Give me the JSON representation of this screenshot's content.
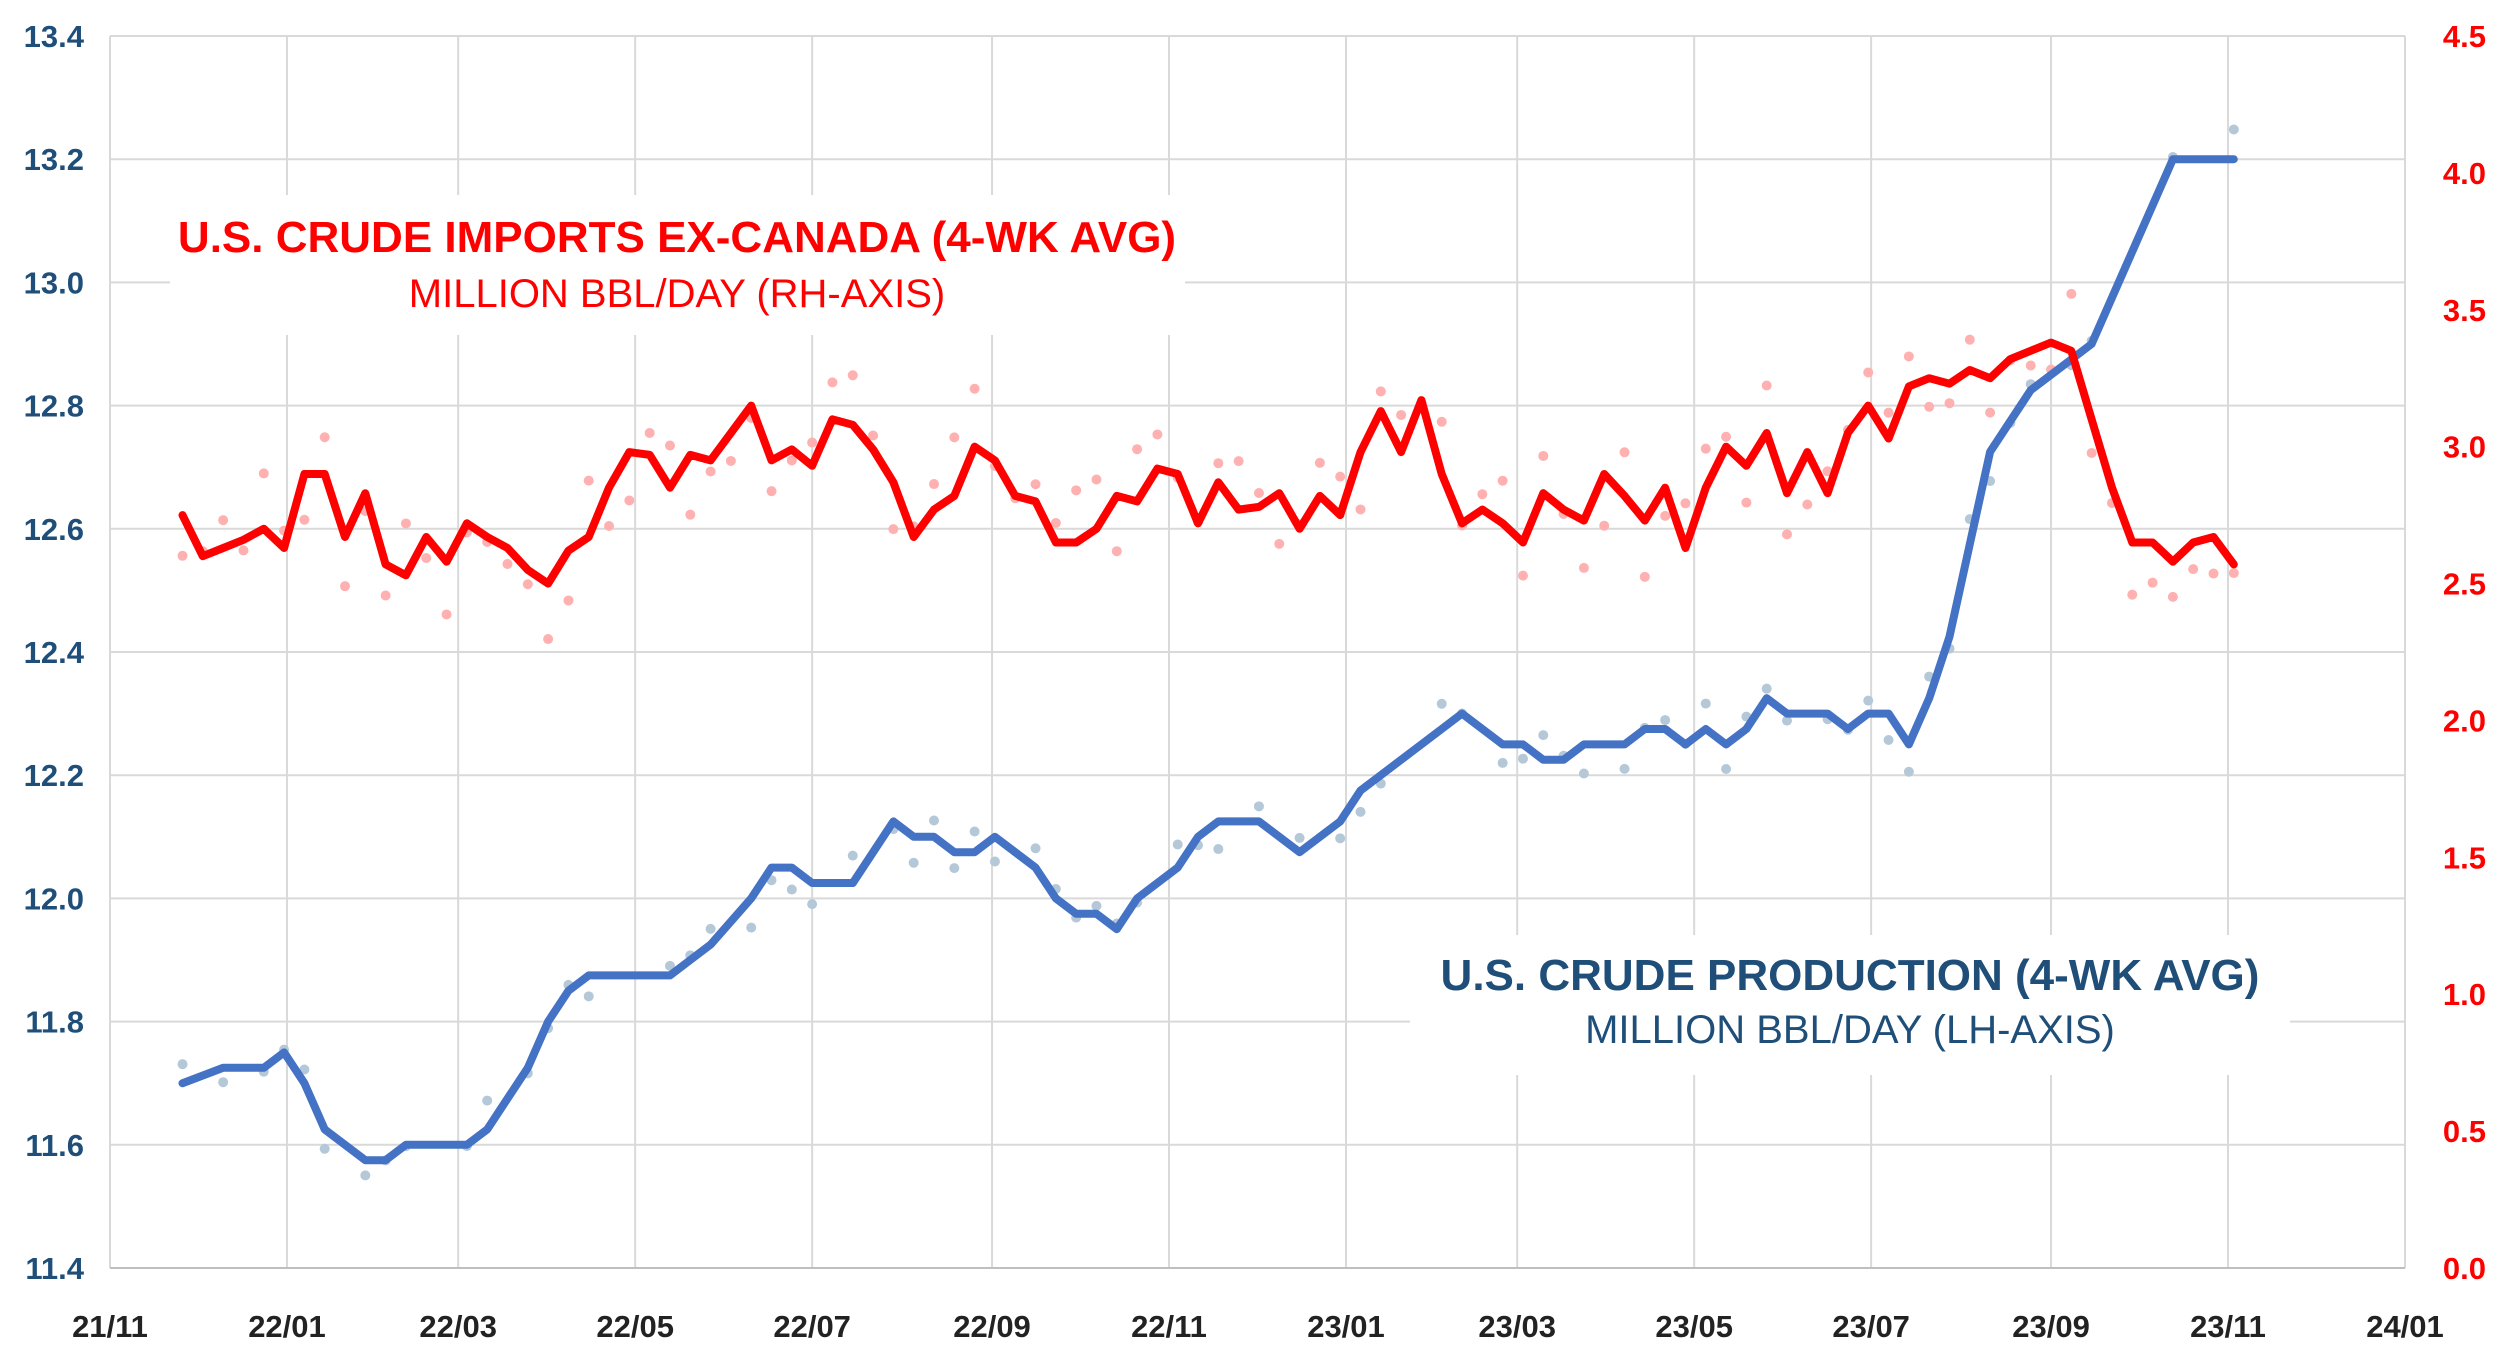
{
  "chart_data": {
    "type": "line",
    "x_ticks": [
      "21/11",
      "22/01",
      "22/03",
      "22/05",
      "22/07",
      "22/09",
      "22/11",
      "23/01",
      "23/03",
      "23/05",
      "23/07",
      "23/09",
      "23/11",
      "24/01"
    ],
    "y_left": {
      "range": [
        11.4,
        13.4
      ],
      "ticks": [
        "11.4",
        "11.6",
        "11.8",
        "12.0",
        "12.2",
        "12.4",
        "12.6",
        "12.8",
        "13.0",
        "13.2",
        "13.4"
      ],
      "color": "#1f4e79"
    },
    "y_right": {
      "range": [
        0.0,
        4.5
      ],
      "ticks": [
        "0.0",
        "0.5",
        "1.0",
        "1.5",
        "2.0",
        "2.5",
        "3.0",
        "3.5",
        "4.0",
        "4.5"
      ],
      "color": "#ff0000"
    },
    "grid": true,
    "labels": {
      "imports_title": "U.S. CRUDE IMPORTS EX-CANADA (4-WK AVG)",
      "imports_sub": "MILLION BBL/DAY (RH-AXIS)",
      "production_title": "U.S. CRUDE PRODUCTION (4-WK AVG)",
      "production_sub": "MILLION BBL/DAY (LH-AXIS)"
    },
    "series": [
      {
        "name": "U.S. Crude Production (4-wk avg)",
        "axis": "left",
        "color": "#4472c4",
        "points": [
          [
            "2021-11-26",
            11.7
          ],
          [
            "2021-12-10",
            11.725
          ],
          [
            "2021-12-24",
            11.725
          ],
          [
            "2021-12-31",
            11.75
          ],
          [
            "2022-01-07",
            11.7
          ],
          [
            "2022-01-14",
            11.625
          ],
          [
            "2022-01-28",
            11.575
          ],
          [
            "2022-02-04",
            11.575
          ],
          [
            "2022-02-11",
            11.6
          ],
          [
            "2022-03-04",
            11.6
          ],
          [
            "2022-03-11",
            11.625
          ],
          [
            "2022-03-25",
            11.725
          ],
          [
            "2022-04-01",
            11.8
          ],
          [
            "2022-04-08",
            11.85
          ],
          [
            "2022-04-15",
            11.875
          ],
          [
            "2022-05-13",
            11.875
          ],
          [
            "2022-05-20",
            11.9
          ],
          [
            "2022-05-27",
            11.925
          ],
          [
            "2022-06-10",
            12.0
          ],
          [
            "2022-06-17",
            12.05
          ],
          [
            "2022-06-24",
            12.05
          ],
          [
            "2022-07-01",
            12.025
          ],
          [
            "2022-07-15",
            12.025
          ],
          [
            "2022-07-29",
            12.125
          ],
          [
            "2022-08-05",
            12.1
          ],
          [
            "2022-08-12",
            12.1
          ],
          [
            "2022-08-19",
            12.075
          ],
          [
            "2022-08-26",
            12.075
          ],
          [
            "2022-09-02",
            12.1
          ],
          [
            "2022-09-16",
            12.05
          ],
          [
            "2022-09-23",
            12.0
          ],
          [
            "2022-09-30",
            11.975
          ],
          [
            "2022-10-07",
            11.975
          ],
          [
            "2022-10-14",
            11.95
          ],
          [
            "2022-10-21",
            12.0
          ],
          [
            "2022-11-04",
            12.05
          ],
          [
            "2022-11-11",
            12.1
          ],
          [
            "2022-11-18",
            12.125
          ],
          [
            "2022-12-02",
            12.125
          ],
          [
            "2022-12-16",
            12.075
          ],
          [
            "2022-12-30",
            12.125
          ],
          [
            "2023-01-06",
            12.175
          ],
          [
            "2023-01-13",
            12.2
          ],
          [
            "2023-02-03",
            12.275
          ],
          [
            "2023-02-10",
            12.3
          ],
          [
            "2023-02-24",
            12.25
          ],
          [
            "2023-03-03",
            12.25
          ],
          [
            "2023-03-10",
            12.225
          ],
          [
            "2023-03-17",
            12.225
          ],
          [
            "2023-03-24",
            12.25
          ],
          [
            "2023-04-07",
            12.25
          ],
          [
            "2023-04-14",
            12.275
          ],
          [
            "2023-04-21",
            12.275
          ],
          [
            "2023-04-28",
            12.25
          ],
          [
            "2023-05-05",
            12.275
          ],
          [
            "2023-05-12",
            12.25
          ],
          [
            "2023-05-19",
            12.275
          ],
          [
            "2023-05-26",
            12.325
          ],
          [
            "2023-06-02",
            12.3
          ],
          [
            "2023-06-16",
            12.3
          ],
          [
            "2023-06-23",
            12.275
          ],
          [
            "2023-06-30",
            12.3
          ],
          [
            "2023-07-07",
            12.3
          ],
          [
            "2023-07-14",
            12.25
          ],
          [
            "2023-07-21",
            12.325
          ],
          [
            "2023-07-28",
            12.425
          ],
          [
            "2023-08-04",
            12.575
          ],
          [
            "2023-08-11",
            12.725
          ],
          [
            "2023-08-18",
            12.775
          ],
          [
            "2023-08-25",
            12.825
          ],
          [
            "2023-09-08",
            12.875
          ],
          [
            "2023-09-15",
            12.9
          ],
          [
            "2023-10-13",
            13.2
          ],
          [
            "2023-11-03",
            13.2
          ]
        ]
      },
      {
        "name": "U.S. Crude Imports ex-Canada (4-wk avg)",
        "axis": "right",
        "color": "#ff0000",
        "points": [
          [
            "2021-11-26",
            2.75
          ],
          [
            "2021-12-03",
            2.6
          ],
          [
            "2021-12-10",
            2.63
          ],
          [
            "2021-12-17",
            2.66
          ],
          [
            "2021-12-24",
            2.7
          ],
          [
            "2021-12-31",
            2.63
          ],
          [
            "2022-01-07",
            2.9
          ],
          [
            "2022-01-14",
            2.9
          ],
          [
            "2022-01-21",
            2.67
          ],
          [
            "2022-01-28",
            2.83
          ],
          [
            "2022-02-04",
            2.57
          ],
          [
            "2022-02-11",
            2.53
          ],
          [
            "2022-02-18",
            2.67
          ],
          [
            "2022-02-25",
            2.58
          ],
          [
            "2022-03-04",
            2.72
          ],
          [
            "2022-03-11",
            2.67
          ],
          [
            "2022-03-18",
            2.63
          ],
          [
            "2022-03-25",
            2.55
          ],
          [
            "2022-04-01",
            2.5
          ],
          [
            "2022-04-08",
            2.62
          ],
          [
            "2022-04-15",
            2.67
          ],
          [
            "2022-04-22",
            2.85
          ],
          [
            "2022-04-29",
            2.98
          ],
          [
            "2022-05-06",
            2.97
          ],
          [
            "2022-05-13",
            2.85
          ],
          [
            "2022-05-20",
            2.97
          ],
          [
            "2022-05-27",
            2.95
          ],
          [
            "2022-06-03",
            3.05
          ],
          [
            "2022-06-10",
            3.15
          ],
          [
            "2022-06-17",
            2.95
          ],
          [
            "2022-06-24",
            2.99
          ],
          [
            "2022-07-01",
            2.93
          ],
          [
            "2022-07-08",
            3.1
          ],
          [
            "2022-07-15",
            3.08
          ],
          [
            "2022-07-22",
            2.99
          ],
          [
            "2022-07-29",
            2.87
          ],
          [
            "2022-08-05",
            2.67
          ],
          [
            "2022-08-12",
            2.77
          ],
          [
            "2022-08-19",
            2.82
          ],
          [
            "2022-08-26",
            3.0
          ],
          [
            "2022-09-02",
            2.95
          ],
          [
            "2022-09-09",
            2.82
          ],
          [
            "2022-09-16",
            2.8
          ],
          [
            "2022-09-23",
            2.65
          ],
          [
            "2022-09-30",
            2.65
          ],
          [
            "2022-10-07",
            2.7
          ],
          [
            "2022-10-14",
            2.82
          ],
          [
            "2022-10-21",
            2.8
          ],
          [
            "2022-10-28",
            2.92
          ],
          [
            "2022-11-04",
            2.9
          ],
          [
            "2022-11-11",
            2.72
          ],
          [
            "2022-11-18",
            2.87
          ],
          [
            "2022-11-25",
            2.77
          ],
          [
            "2022-12-02",
            2.78
          ],
          [
            "2022-12-09",
            2.83
          ],
          [
            "2022-12-16",
            2.7
          ],
          [
            "2022-12-23",
            2.82
          ],
          [
            "2022-12-30",
            2.75
          ],
          [
            "2023-01-06",
            2.98
          ],
          [
            "2023-01-13",
            3.13
          ],
          [
            "2023-01-20",
            2.98
          ],
          [
            "2023-01-27",
            3.17
          ],
          [
            "2023-02-03",
            2.9
          ],
          [
            "2023-02-10",
            2.72
          ],
          [
            "2023-02-17",
            2.77
          ],
          [
            "2023-02-24",
            2.72
          ],
          [
            "2023-03-03",
            2.65
          ],
          [
            "2023-03-10",
            2.83
          ],
          [
            "2023-03-17",
            2.77
          ],
          [
            "2023-03-24",
            2.73
          ],
          [
            "2023-03-31",
            2.9
          ],
          [
            "2023-04-07",
            2.82
          ],
          [
            "2023-04-14",
            2.73
          ],
          [
            "2023-04-21",
            2.85
          ],
          [
            "2023-04-28",
            2.63
          ],
          [
            "2023-05-05",
            2.85
          ],
          [
            "2023-05-12",
            3.0
          ],
          [
            "2023-05-19",
            2.93
          ],
          [
            "2023-05-26",
            3.05
          ],
          [
            "2023-06-02",
            2.83
          ],
          [
            "2023-06-09",
            2.98
          ],
          [
            "2023-06-16",
            2.83
          ],
          [
            "2023-06-23",
            3.05
          ],
          [
            "2023-06-30",
            3.15
          ],
          [
            "2023-07-07",
            3.03
          ],
          [
            "2023-07-14",
            3.22
          ],
          [
            "2023-07-21",
            3.25
          ],
          [
            "2023-07-28",
            3.23
          ],
          [
            "2023-08-04",
            3.28
          ],
          [
            "2023-08-11",
            3.25
          ],
          [
            "2023-08-18",
            3.32
          ],
          [
            "2023-08-25",
            3.35
          ],
          [
            "2023-09-01",
            3.38
          ],
          [
            "2023-09-08",
            3.35
          ],
          [
            "2023-09-15",
            3.1
          ],
          [
            "2023-09-22",
            2.85
          ],
          [
            "2023-09-29",
            2.65
          ],
          [
            "2023-10-06",
            2.65
          ],
          [
            "2023-10-13",
            2.58
          ],
          [
            "2023-10-20",
            2.65
          ],
          [
            "2023-10-27",
            2.67
          ],
          [
            "2023-11-03",
            2.57
          ]
        ]
      }
    ]
  }
}
